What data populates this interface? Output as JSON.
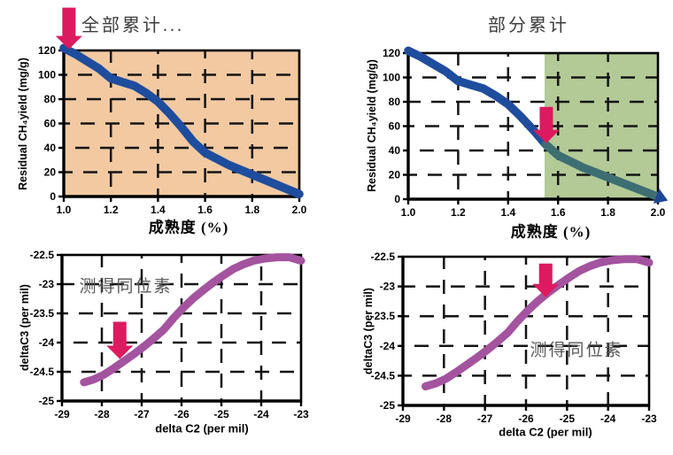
{
  "colors": {
    "blue": "#1f4d9e",
    "teal": "#3d6e72",
    "navy": "#1d4694",
    "purple": "#a4539f",
    "tan": "#f2c9a1",
    "green": "#b3ca96",
    "white": "#ffffff",
    "arrow_red": "#dd1a5f",
    "grid": "#141414",
    "title_text": "#3d3d3d",
    "annotation_text": "#595959"
  },
  "chart_data": [
    {
      "type": "line",
      "name": "ch4-yield-full",
      "title": "全部累计...",
      "xlabel": "成熟度 (%)",
      "ylabel": "Residual CH₄yield (mg/g)",
      "xlim": [
        1.0,
        2.0
      ],
      "ylim": [
        0,
        120
      ],
      "xticks": [
        1.0,
        1.2,
        1.4,
        1.6,
        1.8,
        2.0
      ],
      "xtick_labels": [
        "1.0",
        "1.2",
        "1.4",
        "1.6",
        "1.8",
        "2.0"
      ],
      "yticks": [
        0,
        20,
        40,
        60,
        80,
        100,
        120
      ],
      "ytick_labels": [
        "0",
        "20",
        "40",
        "60",
        "80",
        "100",
        "120"
      ],
      "grid": true,
      "grid_x": [
        1.2,
        1.4,
        1.6,
        1.8
      ],
      "grid_y": [
        20,
        40,
        60,
        80,
        100
      ],
      "bg": "tan",
      "series": [
        {
          "name": "residual-ch4",
          "color": "blue",
          "width": 9.5,
          "points": [
            [
              1.0,
              122
            ],
            [
              1.05,
              117
            ],
            [
              1.1,
              111
            ],
            [
              1.15,
              105
            ],
            [
              1.2,
              97
            ],
            [
              1.25,
              94
            ],
            [
              1.3,
              91
            ],
            [
              1.35,
              85
            ],
            [
              1.4,
              78
            ],
            [
              1.45,
              68
            ],
            [
              1.5,
              57
            ],
            [
              1.55,
              45
            ],
            [
              1.6,
              36
            ],
            [
              1.65,
              31
            ],
            [
              1.7,
              26
            ],
            [
              1.75,
              22
            ],
            [
              1.8,
              18
            ],
            [
              1.85,
              14
            ],
            [
              1.9,
              10
            ],
            [
              1.95,
              6
            ],
            [
              2.0,
              2
            ]
          ]
        }
      ],
      "arrow": {
        "x": 1.022,
        "y": 121,
        "len": 47
      },
      "annotation": null
    },
    {
      "type": "line",
      "name": "ch4-yield-partial",
      "title": "部分累计",
      "xlabel": "成熟度 (%)",
      "ylabel": "Residual CH₄yield (mg/g)",
      "xlim": [
        1.0,
        2.0
      ],
      "ylim": [
        0,
        120
      ],
      "xticks": [
        1.0,
        1.2,
        1.4,
        1.6,
        1.8,
        2.0
      ],
      "xtick_labels": [
        "1.0",
        "1.2",
        "1.4",
        "1.6",
        "1.8",
        "2.0"
      ],
      "yticks": [
        0,
        20,
        40,
        60,
        80,
        100,
        120
      ],
      "ytick_labels": [
        "0",
        "20",
        "40",
        "60",
        "80",
        "100",
        "120"
      ],
      "grid": true,
      "grid_x": [
        1.2,
        1.4,
        1.6,
        1.8
      ],
      "grid_y": [
        20,
        40,
        60,
        80,
        100
      ],
      "bg": "white",
      "region": {
        "x0": 1.546,
        "x1": 2.0,
        "color": "green"
      },
      "series": [
        {
          "name": "residual-ch4-early",
          "color": "blue",
          "width": 9.5,
          "points": [
            [
              1.0,
              122
            ],
            [
              1.05,
              117
            ],
            [
              1.1,
              111
            ],
            [
              1.15,
              105
            ],
            [
              1.2,
              97
            ],
            [
              1.25,
              94
            ],
            [
              1.3,
              91
            ],
            [
              1.35,
              85
            ],
            [
              1.4,
              78
            ],
            [
              1.45,
              68
            ],
            [
              1.5,
              57
            ],
            [
              1.55,
              45
            ]
          ]
        },
        {
          "name": "residual-ch4-late",
          "color": "teal",
          "width": 9.5,
          "end_arrow": true,
          "arrow_color": "navy",
          "points": [
            [
              1.55,
              45
            ],
            [
              1.6,
              36
            ],
            [
              1.65,
              31
            ],
            [
              1.7,
              26
            ],
            [
              1.75,
              22
            ],
            [
              1.8,
              18
            ],
            [
              1.85,
              14
            ],
            [
              1.9,
              10
            ],
            [
              1.95,
              6
            ],
            [
              2.0,
              2
            ]
          ]
        }
      ],
      "arrow": {
        "x": 1.553,
        "y": 46,
        "len": 41
      },
      "annotation": null
    },
    {
      "type": "line",
      "name": "isotope-left",
      "title": "",
      "xlabel": "delta C2 (per mil)",
      "ylabel": "deltaC3 (per mil)",
      "xlim": [
        -29,
        -23
      ],
      "ylim": [
        -25,
        -22.5
      ],
      "xticks": [
        -29,
        -28,
        -27,
        -26,
        -25,
        -24,
        -23
      ],
      "xtick_labels": [
        "-29",
        "-28",
        "-27",
        "-26",
        "-25",
        "-24",
        "-23"
      ],
      "yticks": [
        -25,
        -24.5,
        -24,
        -23.5,
        -23,
        -22.5
      ],
      "ytick_labels": [
        "-25",
        "-24.5",
        "-24",
        "-23.5",
        "-23",
        "-22.5"
      ],
      "grid": true,
      "grid_x": [
        -28,
        -27,
        -26,
        -25,
        -24
      ],
      "grid_y": [
        -24.5,
        -24,
        -23.5,
        -23
      ],
      "bg": "white",
      "series": [
        {
          "name": "deltac3-vs-deltac2",
          "color": "purple",
          "width": 9,
          "points": [
            [
              -28.45,
              -24.68
            ],
            [
              -28.2,
              -24.63
            ],
            [
              -27.95,
              -24.55
            ],
            [
              -27.7,
              -24.44
            ],
            [
              -27.45,
              -24.32
            ],
            [
              -27.2,
              -24.2
            ],
            [
              -26.95,
              -24.07
            ],
            [
              -26.7,
              -23.93
            ],
            [
              -26.45,
              -23.78
            ],
            [
              -26.2,
              -23.58
            ],
            [
              -25.95,
              -23.4
            ],
            [
              -25.7,
              -23.24
            ],
            [
              -25.45,
              -23.1
            ],
            [
              -25.2,
              -22.97
            ],
            [
              -24.95,
              -22.85
            ],
            [
              -24.7,
              -22.74
            ],
            [
              -24.45,
              -22.66
            ],
            [
              -24.2,
              -22.6
            ],
            [
              -23.9,
              -22.56
            ],
            [
              -23.6,
              -22.54
            ],
            [
              -23.3,
              -22.54
            ],
            [
              -23.0,
              -22.6
            ]
          ]
        }
      ],
      "arrow": {
        "x": -27.55,
        "y": -24.28,
        "len": 42
      },
      "annotation": {
        "text": "测得同位素"
      }
    },
    {
      "type": "line",
      "name": "isotope-right",
      "title": "",
      "xlabel": "delta C2 (per mil)",
      "ylabel": "deltaC3 (per mil)",
      "xlim": [
        -29,
        -23
      ],
      "ylim": [
        -25,
        -22.5
      ],
      "xticks": [
        -29,
        -28,
        -27,
        -26,
        -25,
        -24,
        -23
      ],
      "xtick_labels": [
        "-29",
        "-28",
        "-27",
        "-26",
        "-25",
        "-24",
        "-23"
      ],
      "yticks": [
        -25,
        -24.5,
        -24,
        -23.5,
        -23,
        -22.5
      ],
      "ytick_labels": [
        "-25",
        "-24.5",
        "-24",
        "-23.5",
        "-23",
        "-22.5"
      ],
      "grid": true,
      "grid_x": [
        -28,
        -27,
        -26,
        -25,
        -24
      ],
      "grid_y": [
        -24.5,
        -24,
        -23.5,
        -23
      ],
      "bg": "white",
      "series": [
        {
          "name": "deltac3-vs-deltac2",
          "color": "purple",
          "width": 9,
          "points": [
            [
              -28.45,
              -24.68
            ],
            [
              -28.2,
              -24.63
            ],
            [
              -27.95,
              -24.55
            ],
            [
              -27.7,
              -24.44
            ],
            [
              -27.45,
              -24.32
            ],
            [
              -27.2,
              -24.2
            ],
            [
              -26.95,
              -24.07
            ],
            [
              -26.7,
              -23.93
            ],
            [
              -26.45,
              -23.78
            ],
            [
              -26.2,
              -23.58
            ],
            [
              -25.95,
              -23.4
            ],
            [
              -25.7,
              -23.24
            ],
            [
              -25.45,
              -23.1
            ],
            [
              -25.2,
              -22.97
            ],
            [
              -24.95,
              -22.85
            ],
            [
              -24.7,
              -22.74
            ],
            [
              -24.45,
              -22.66
            ],
            [
              -24.2,
              -22.6
            ],
            [
              -23.9,
              -22.56
            ],
            [
              -23.6,
              -22.54
            ],
            [
              -23.3,
              -22.54
            ],
            [
              -23.0,
              -22.6
            ]
          ]
        }
      ],
      "arrow": {
        "x": -25.52,
        "y": -23.18,
        "len": 38
      },
      "annotation": {
        "text": "测得同位素"
      }
    }
  ]
}
